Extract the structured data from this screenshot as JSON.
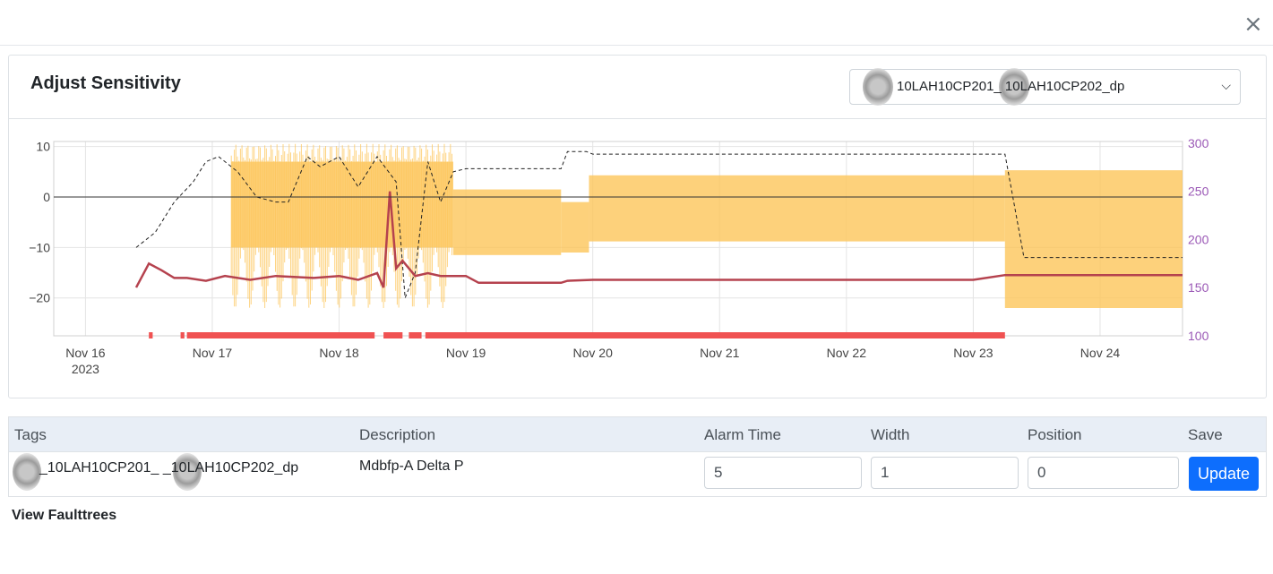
{
  "modal": {
    "close_label": "×"
  },
  "card": {
    "title": "Adjust Sensitivity"
  },
  "tag_select": {
    "selected": "10LAH10CP201_ 10LAH10CP202_dp"
  },
  "chart_data": {
    "type": "line",
    "title": "",
    "x_ticks": [
      {
        "label": "Nov 16",
        "sub": "2023",
        "day": 16
      },
      {
        "label": "Nov 17",
        "sub": "",
        "day": 17
      },
      {
        "label": "Nov 18",
        "sub": "",
        "day": 18
      },
      {
        "label": "Nov 19",
        "sub": "",
        "day": 19
      },
      {
        "label": "Nov 20",
        "sub": "",
        "day": 20
      },
      {
        "label": "Nov 21",
        "sub": "",
        "day": 21
      },
      {
        "label": "Nov 22",
        "sub": "",
        "day": 22
      },
      {
        "label": "Nov 23",
        "sub": "",
        "day": 23
      },
      {
        "label": "Nov 24",
        "sub": "",
        "day": 24
      }
    ],
    "xlim": [
      15.75,
      24.65
    ],
    "y_left": {
      "ticks": [
        "10",
        "0",
        "−10",
        "−20"
      ],
      "values": [
        10,
        0,
        -10,
        -20
      ],
      "ylim": [
        -27.5,
        11
      ]
    },
    "y_right": {
      "ticks": [
        "300",
        "250",
        "200",
        "150",
        "100"
      ],
      "values": [
        300,
        250,
        200,
        150,
        100
      ],
      "ylim": [
        98,
        300
      ],
      "color": "#9b59b6"
    },
    "band": {
      "color": "#fdc65a",
      "segments": [
        {
          "x0": 17.15,
          "x1": 18.9,
          "lo": -10,
          "hi": 7,
          "noisy": true
        },
        {
          "x0": 18.9,
          "x1": 19.75,
          "lo": -11.5,
          "hi": 1.5
        },
        {
          "x0": 19.75,
          "x1": 19.97,
          "lo": -11,
          "hi": -1
        },
        {
          "x0": 19.97,
          "x1": 23.25,
          "lo": -8.8,
          "hi": 4.3
        },
        {
          "x0": 23.25,
          "x1": 24.65,
          "lo": -22,
          "hi": 5.3
        }
      ]
    },
    "series": [
      {
        "style": "dashed",
        "color": "#222222",
        "axis": "left",
        "x": [
          16.4,
          16.55,
          16.7,
          16.85,
          16.95,
          17.05,
          17.2,
          17.35,
          17.5,
          17.6,
          17.75,
          17.85,
          18.0,
          18.15,
          18.3,
          18.45,
          18.52,
          18.6,
          18.7,
          18.8,
          18.9,
          19.0,
          19.75,
          19.8,
          19.95,
          20.0,
          21.0,
          22.0,
          23.0,
          23.25,
          23.4,
          24.65
        ],
        "y": [
          -10,
          -7,
          -1,
          3,
          7,
          8,
          5,
          0,
          -1,
          -1,
          8,
          6,
          8,
          2,
          8,
          3,
          -20,
          -15,
          7,
          -1,
          5,
          5.6,
          5.6,
          9,
          9,
          8.5,
          8.5,
          8.5,
          8.5,
          8.5,
          -12,
          -12
        ]
      },
      {
        "style": "solid",
        "color": "#b5424e",
        "axis": "right",
        "x": [
          16.4,
          16.5,
          16.6,
          16.7,
          16.8,
          16.95,
          17.1,
          17.3,
          17.5,
          17.8,
          18.0,
          18.15,
          18.3,
          18.35,
          18.4,
          18.45,
          18.5,
          18.6,
          18.7,
          18.8,
          19.0,
          19.1,
          19.75,
          19.8,
          20.0,
          21.0,
          22.0,
          23.0,
          23.25,
          24.65
        ],
        "y": [
          150,
          175,
          168,
          160,
          160,
          157,
          162,
          158,
          162,
          160,
          162,
          158,
          165,
          150,
          250,
          170,
          178,
          162,
          165,
          162,
          162,
          155,
          155,
          157,
          158,
          158,
          158,
          158,
          163,
          163
        ]
      },
      {
        "style": "solid",
        "color": "#333333",
        "axis": "left",
        "name": "",
        "x": [
          15.75,
          24.65
        ],
        "y": [
          0,
          0
        ]
      }
    ],
    "alarms": {
      "color": "#f05252",
      "segments": [
        [
          16.5,
          16.53
        ],
        [
          16.75,
          16.78
        ],
        [
          16.8,
          18.28
        ],
        [
          18.35,
          18.5
        ],
        [
          18.55,
          18.65
        ],
        [
          18.68,
          23.25
        ]
      ]
    }
  },
  "table": {
    "headers": {
      "tags": "Tags",
      "description": "Description",
      "alarm_time": "Alarm Time",
      "width": "Width",
      "position": "Position",
      "save": "Save"
    },
    "row": {
      "tags": "_10LAH10CP201_ _10LAH10CP202_dp",
      "description": "Mdbfp-A Delta P",
      "alarm_time": "5",
      "width": "1",
      "position": "0",
      "update_label": "Update"
    }
  },
  "footer": {
    "view_faulttrees": "View Faulttrees"
  }
}
